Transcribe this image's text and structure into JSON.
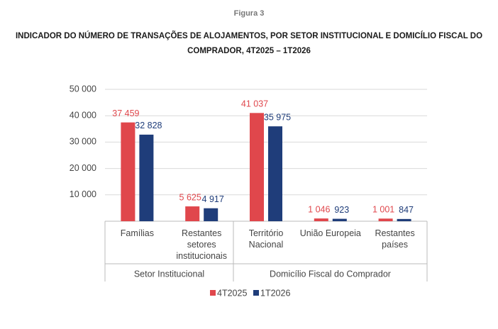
{
  "figure_label": "Figura 3",
  "chart_data": {
    "type": "bar",
    "title": "INDICADOR DO NÚMERO DE TRANSAÇÕES DE ALOJAMENTOS, POR SETOR INSTITUCIONAL E DOMICÍLIO FISCAL DO COMPRADOR, 4T2025 – 1T2026",
    "categories": [
      "Famílias",
      "Restantes setores institucionais",
      "Território Nacional",
      "União Europeia",
      "Restantes países"
    ],
    "groups": [
      "Setor Institucional",
      "Domicílio Fiscal do Comprador"
    ],
    "series": [
      {
        "name": "4T2025",
        "color": "#e0474c",
        "values": [
          37459,
          5625,
          41037,
          1046,
          1001
        ],
        "value_labels": [
          "37 459",
          "5 625",
          "41 037",
          "1 046",
          "1 001"
        ]
      },
      {
        "name": "1T2026",
        "color": "#1f3d7a",
        "values": [
          32828,
          4917,
          35975,
          923,
          847
        ],
        "value_labels": [
          "32 828",
          "4 917",
          "35 975",
          "923",
          "847"
        ]
      }
    ],
    "ylim": [
      0,
      50000
    ],
    "yticks": [
      {
        "value": 10000,
        "label": "10 000"
      },
      {
        "value": 20000,
        "label": "20 000"
      },
      {
        "value": 30000,
        "label": "30 000"
      },
      {
        "value": 40000,
        "label": "40 000"
      },
      {
        "value": 50000,
        "label": "50 000"
      }
    ],
    "grid": true,
    "legend": "bottom"
  }
}
